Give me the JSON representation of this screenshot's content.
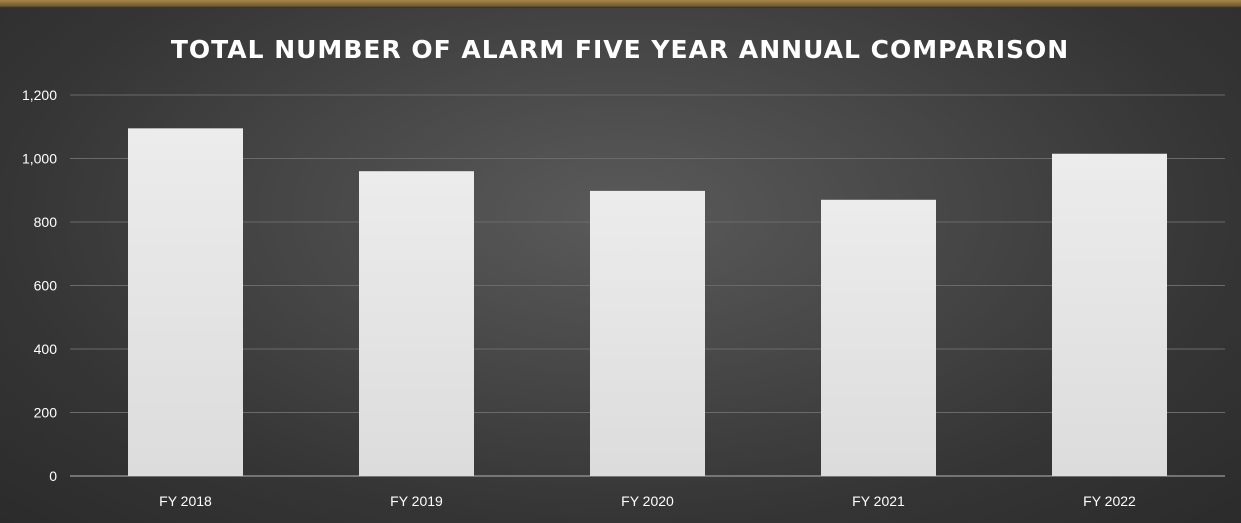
{
  "chart_data": {
    "type": "bar",
    "title": "TOTAL NUMBER OF ALARM FIVE YEAR ANNUAL COMPARISON",
    "categories": [
      "FY 2018",
      "FY 2019",
      "FY 2020",
      "FY 2021",
      "FY 2022"
    ],
    "values": [
      1095,
      960,
      898,
      870,
      1015
    ],
    "ylim": [
      0,
      1200
    ],
    "yticks": [
      0,
      200,
      400,
      600,
      800,
      1000,
      1200
    ],
    "ytick_labels": [
      "0",
      "200",
      "400",
      "600",
      "800",
      "1,000",
      "1,200"
    ],
    "grid": true,
    "legend": false
  },
  "colors": {
    "bar_fill": "#e6e6e6",
    "background": "#3c3c3c",
    "text": "#ffffff"
  }
}
